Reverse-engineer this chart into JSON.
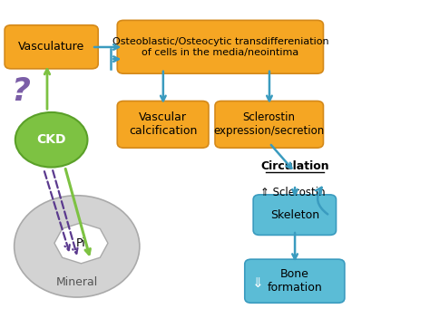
{
  "bg_color": "#ffffff",
  "orange_box_color": "#F5A623",
  "orange_box_edge": "#D4891A",
  "blue_box_color": "#5BBCD6",
  "blue_box_edge": "#3A9BBF",
  "green_circle_color": "#7DC242",
  "green_circle_edge": "#5AA028",
  "gray_ellipse_color": "#D3D3D3",
  "gray_ellipse_edge": "#AAAAAA",
  "arrow_color": "#3A9BBF",
  "green_arrow_color": "#7DC242",
  "purple_dash_color": "#5B3A8E",
  "purple_text_color": "#7B5EA7",
  "vasculature_text": "Vasculature",
  "osteoblastic_text": "Osteoblastic/Osteocytic transdiffereniation\nof cells in the media/neointima",
  "vascular_calc_text": "Vascular\ncalcification",
  "sclerostin_expr_text": "Sclerostin\nexpression/secretion",
  "circulation_text": "Circulation",
  "sclerostin_arrow_text": "⇑ Sclerostin",
  "skeleton_text": "Skeleton",
  "bone_text": "Bone\nformation",
  "ckd_text": "CKD",
  "pi_text": "Pi",
  "mineral_text": "Mineral",
  "question_mark": "?"
}
